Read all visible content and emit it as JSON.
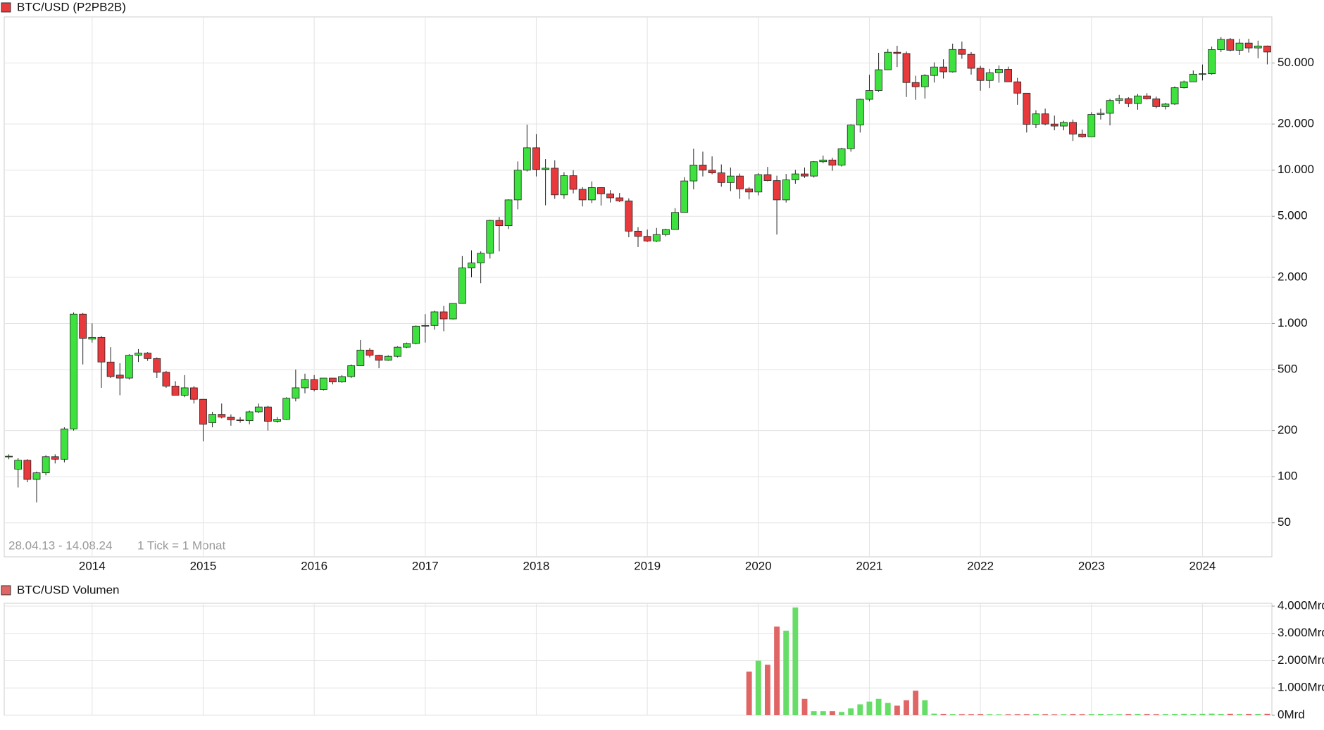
{
  "chart_data": [
    {
      "type": "candlestick",
      "title": "BTC/USD (P2PB2B)",
      "annotations": [
        "28.04.13 - 14.08.24",
        "1 Tick = 1 Monat"
      ],
      "log_scale": true,
      "grid": true,
      "up_color": "#3ee23e",
      "down_color": "#e8393d",
      "categories": [
        null,
        null,
        null,
        null,
        null,
        null,
        null,
        null,
        null,
        "2014",
        null,
        null,
        null,
        null,
        null,
        null,
        null,
        null,
        null,
        null,
        null,
        "2015",
        null,
        null,
        null,
        null,
        null,
        null,
        null,
        null,
        null,
        null,
        null,
        "2016",
        null,
        null,
        null,
        null,
        null,
        null,
        null,
        null,
        null,
        null,
        null,
        "2017",
        null,
        null,
        null,
        null,
        null,
        null,
        null,
        null,
        null,
        null,
        null,
        "2018",
        null,
        null,
        null,
        null,
        null,
        null,
        null,
        null,
        null,
        null,
        null,
        "2019",
        null,
        null,
        null,
        null,
        null,
        null,
        null,
        null,
        null,
        null,
        null,
        "2020",
        null,
        null,
        null,
        null,
        null,
        null,
        null,
        null,
        null,
        null,
        null,
        "2021",
        null,
        null,
        null,
        null,
        null,
        null,
        null,
        null,
        null,
        null,
        null,
        "2022",
        null,
        null,
        null,
        null,
        null,
        null,
        null,
        null,
        null,
        null,
        null,
        "2023",
        null,
        null,
        null,
        null,
        null,
        null,
        null,
        null,
        null,
        null,
        null,
        "2024",
        null,
        null,
        null,
        null,
        null,
        null,
        null
      ],
      "open": [
        135,
        112,
        128,
        96,
        106,
        135,
        130,
        205,
        1150,
        790,
        810,
        560,
        460,
        440,
        620,
        640,
        590,
        480,
        390,
        340,
        380,
        320,
        225,
        255,
        245,
        235,
        232,
        265,
        285,
        230,
        237,
        325,
        380,
        430,
        370,
        440,
        415,
        450,
        530,
        670,
        620,
        575,
        610,
        700,
        740,
        960,
        970,
        1190,
        1070,
        1350,
        2300,
        2480,
        2870,
        4700,
        4340,
        6400,
        10000,
        14000,
        10100,
        10300,
        6900,
        9200,
        7500,
        6400,
        7700,
        7000,
        6600,
        6300,
        4000,
        3700,
        3450,
        3800,
        4100,
        5300,
        8500,
        10800,
        10000,
        9600,
        8300,
        9150,
        7550,
        7200,
        9350,
        8550,
        6400,
        8650,
        9450,
        9150,
        11350,
        11650,
        10780,
        13800,
        19700,
        29000,
        33100,
        45200,
        58800,
        57700,
        37300,
        35000,
        41500,
        47100,
        43800,
        61300,
        57000,
        46200,
        38500,
        43200,
        45500,
        37700,
        31800,
        19900,
        23300,
        20000,
        19400,
        20500,
        17200,
        16500,
        23100,
        23500,
        28500,
        29300,
        27200,
        30500,
        29200,
        26000,
        27000,
        34500,
        37700,
        42300,
        42600,
        61200,
        71300,
        60600,
        67500,
        62700,
        64600
      ],
      "high": [
        140,
        132,
        130,
        108,
        138,
        140,
        210,
        1180,
        1170,
        1000,
        830,
        700,
        550,
        630,
        680,
        650,
        600,
        490,
        420,
        460,
        390,
        320,
        265,
        300,
        255,
        245,
        270,
        300,
        290,
        245,
        330,
        500,
        470,
        460,
        440,
        440,
        460,
        540,
        780,
        690,
        625,
        620,
        710,
        750,
        970,
        1150,
        1210,
        1300,
        1350,
        2750,
        3000,
        2950,
        4750,
        4950,
        6450,
        11400,
        19800,
        17200,
        11800,
        11600,
        9700,
        10000,
        7750,
        8450,
        7750,
        7400,
        7100,
        6550,
        4250,
        4100,
        4200,
        4150,
        5650,
        9000,
        13800,
        13200,
        12300,
        10900,
        10400,
        9500,
        7750,
        9550,
        10500,
        9200,
        9450,
        10050,
        10400,
        11450,
        12450,
        12050,
        14000,
        19900,
        29300,
        41900,
        58300,
        61700,
        64800,
        59500,
        41300,
        42300,
        50500,
        52900,
        66900,
        69000,
        59000,
        47900,
        45800,
        48200,
        47400,
        40000,
        31900,
        24600,
        25200,
        22700,
        21000,
        21400,
        18400,
        23900,
        25200,
        29200,
        31000,
        29900,
        31400,
        31800,
        30200,
        27500,
        35200,
        38400,
        44700,
        48900,
        64000,
        73800,
        72800,
        71900,
        72000,
        70000,
        65000
      ],
      "low": [
        130,
        85,
        92,
        68,
        102,
        122,
        124,
        200,
        540,
        750,
        380,
        440,
        340,
        430,
        560,
        570,
        440,
        380,
        340,
        330,
        300,
        170,
        210,
        240,
        215,
        225,
        220,
        260,
        200,
        225,
        235,
        310,
        350,
        360,
        365,
        400,
        410,
        440,
        530,
        600,
        510,
        570,
        600,
        690,
        730,
        750,
        910,
        890,
        1060,
        1350,
        2000,
        1830,
        2650,
        2950,
        4130,
        5550,
        9800,
        9100,
        5900,
        6500,
        6500,
        7050,
        5800,
        6100,
        5880,
        6150,
        6200,
        3650,
        3150,
        3400,
        3400,
        3700,
        4090,
        5300,
        7500,
        9100,
        9400,
        7800,
        7300,
        6500,
        6450,
        6850,
        8450,
        3800,
        6150,
        8150,
        8900,
        8950,
        11100,
        9900,
        10550,
        13200,
        17600,
        28100,
        32400,
        45000,
        47100,
        30000,
        28800,
        29300,
        37300,
        39600,
        43300,
        53300,
        42000,
        33000,
        34300,
        37200,
        37700,
        26700,
        17600,
        18800,
        19600,
        18200,
        18200,
        15500,
        16300,
        16500,
        21400,
        19600,
        27000,
        25800,
        24800,
        28900,
        25300,
        24900,
        26600,
        34100,
        37600,
        38500,
        41900,
        59000,
        59600,
        56500,
        58500,
        53700,
        49000
      ],
      "close": [
        136,
        128,
        96,
        106,
        135,
        130,
        205,
        1150,
        800,
        810,
        560,
        450,
        440,
        620,
        640,
        590,
        480,
        390,
        340,
        380,
        320,
        220,
        255,
        245,
        235,
        232,
        265,
        285,
        230,
        237,
        325,
        380,
        430,
        370,
        440,
        415,
        450,
        530,
        670,
        620,
        575,
        610,
        700,
        740,
        960,
        970,
        1190,
        1070,
        1350,
        2300,
        2480,
        2870,
        4700,
        4340,
        6400,
        10000,
        14000,
        10100,
        10300,
        6900,
        9200,
        7500,
        6400,
        7700,
        7000,
        6600,
        6300,
        4000,
        3700,
        3450,
        3800,
        4100,
        5300,
        8500,
        10800,
        10000,
        9600,
        8300,
        9150,
        7550,
        7200,
        9350,
        8550,
        6400,
        8650,
        9450,
        9150,
        11350,
        11650,
        10780,
        13800,
        19700,
        29000,
        33100,
        45200,
        58800,
        57700,
        37300,
        35000,
        41500,
        47100,
        43800,
        61300,
        57000,
        46200,
        38500,
        43200,
        45500,
        37700,
        31800,
        19900,
        23300,
        20000,
        19400,
        20500,
        17200,
        16500,
        23100,
        23500,
        28500,
        29300,
        27200,
        30500,
        29200,
        26000,
        27000,
        34500,
        37700,
        42300,
        42600,
        61200,
        71300,
        60600,
        67500,
        62700,
        64600,
        59000
      ],
      "ylim": [
        30,
        100000
      ],
      "yticks": [
        50,
        100,
        200,
        500,
        {
          "value": 1000,
          "label": "1.000"
        },
        {
          "value": 2000,
          "label": "2.000"
        },
        {
          "value": 5000,
          "label": "5.000"
        },
        {
          "value": 10000,
          "label": "10.000"
        },
        {
          "value": 20000,
          "label": "20.000"
        },
        {
          "value": 50000,
          "label": "50.000"
        }
      ]
    },
    {
      "type": "bar",
      "title": "BTC/USD Volumen",
      "grid": true,
      "up_color": "#66dd66",
      "down_color": "#e06666",
      "values": [
        null,
        null,
        null,
        null,
        null,
        null,
        null,
        null,
        null,
        null,
        null,
        null,
        null,
        null,
        null,
        null,
        null,
        null,
        null,
        null,
        null,
        null,
        null,
        null,
        null,
        null,
        null,
        null,
        null,
        null,
        null,
        null,
        null,
        null,
        null,
        null,
        null,
        null,
        null,
        null,
        null,
        null,
        null,
        null,
        null,
        null,
        null,
        null,
        null,
        null,
        null,
        null,
        null,
        null,
        null,
        null,
        null,
        null,
        null,
        null,
        null,
        null,
        null,
        null,
        null,
        null,
        null,
        null,
        null,
        null,
        null,
        null,
        null,
        null,
        null,
        null,
        null,
        null,
        null,
        null,
        1600,
        2000,
        1850,
        3250,
        3100,
        3950,
        600,
        150,
        150,
        150,
        120,
        250,
        400,
        500,
        600,
        450,
        350,
        550,
        900,
        550,
        60,
        50,
        45,
        40,
        40,
        45,
        40,
        35,
        35,
        40,
        40,
        45,
        40,
        35,
        40,
        45,
        40,
        45,
        50,
        40,
        40,
        45,
        50,
        45,
        40,
        45,
        50,
        55,
        50,
        55,
        60,
        50,
        55,
        45,
        50,
        50,
        55
      ],
      "ylim": [
        0,
        4000
      ],
      "yticks": [
        {
          "value": 0,
          "label": "0Mrd"
        },
        {
          "value": 1000,
          "label": "1.000Mrd"
        },
        {
          "value": 2000,
          "label": "2.000Mrd"
        },
        {
          "value": 3000,
          "label": "3.000Mrd"
        },
        {
          "value": 4000,
          "label": "4.000Mrd"
        }
      ]
    }
  ]
}
